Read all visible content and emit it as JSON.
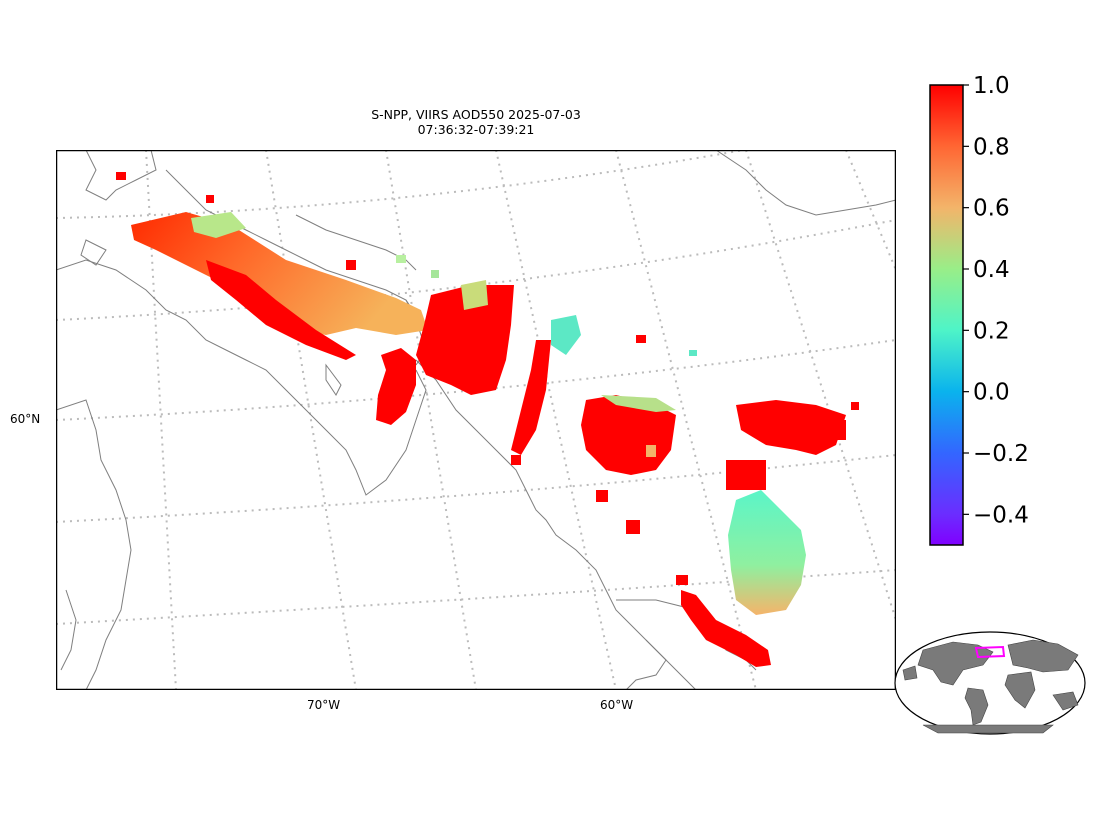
{
  "title": {
    "line1": "S-NPP, VIIRS AOD550 2025-07-03",
    "line2": "07:36:32-07:39:21"
  },
  "axes": {
    "lat_label": "60°N",
    "lon_labels": [
      "70°W",
      "60°W"
    ]
  },
  "colorbar": {
    "colormap": "rainbow",
    "range": [
      -0.5,
      1.0
    ],
    "ticks": [
      1.0,
      0.8,
      0.6,
      0.4,
      0.2,
      0.0,
      -0.2,
      -0.4
    ],
    "tick_labels": [
      "1.0",
      "0.8",
      "0.6",
      "0.4",
      "0.2",
      "0.0",
      "−0.2",
      "−0.4"
    ]
  },
  "colors": {
    "coast": "#7f7f7f",
    "graticule": "#bbbbbb",
    "high_aod": "#ff0000",
    "land_inset": "#7a7a7a",
    "inset_box": "#ff00ff"
  }
}
